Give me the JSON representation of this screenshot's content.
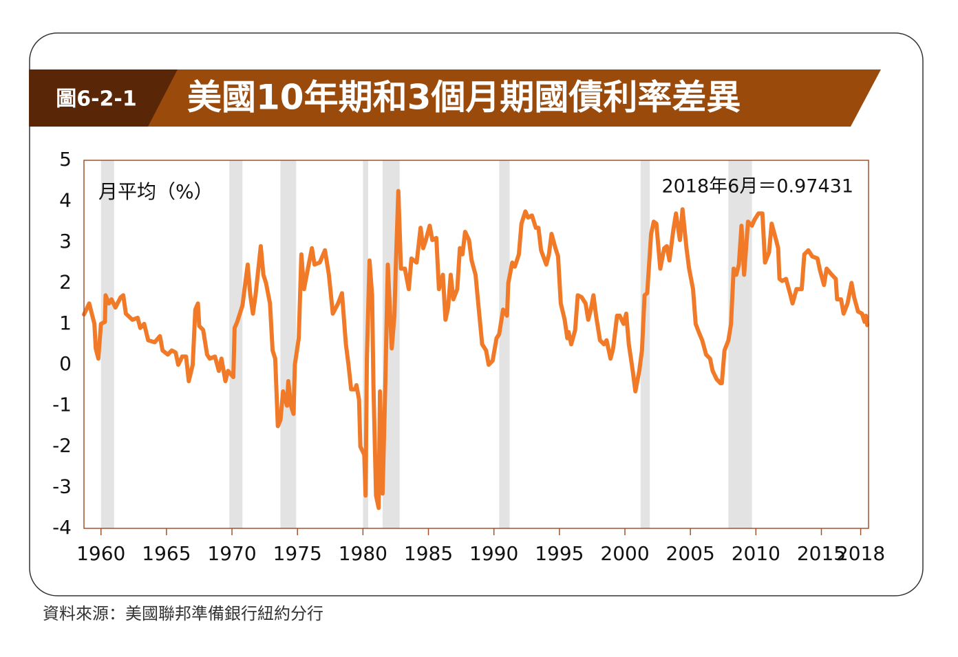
{
  "badge": "圖6-2-1",
  "chart_data": {
    "type": "line",
    "title": "美國10年期和3個月期國債利率差異",
    "y_label": "月平均（%）",
    "annotation": "2018年6月＝0.97431",
    "source": "資料來源：美國聯邦準備銀行紐約分行",
    "xlim": [
      1958.7,
      2018.6
    ],
    "xticks": [
      1960,
      1965,
      1970,
      1975,
      1980,
      1985,
      1990,
      1995,
      2000,
      2005,
      2010,
      2015,
      2018
    ],
    "ylim": [
      -4,
      5
    ],
    "yticks": [
      -4,
      -3,
      -2,
      -1,
      0,
      1,
      2,
      3,
      4,
      5
    ],
    "recessions": [
      [
        1960.0,
        1961.0
      ],
      [
        1969.8,
        1970.8
      ],
      [
        1973.7,
        1974.9
      ],
      [
        1980.0,
        1980.4
      ],
      [
        1981.5,
        1982.8
      ],
      [
        1990.4,
        1991.2
      ],
      [
        2001.2,
        2001.9
      ],
      [
        2007.9,
        2009.7
      ]
    ],
    "recession_color": "#e3e3e3",
    "x": [
      1958.7,
      1959.1,
      1959.5,
      1959.6,
      1959.8,
      1960.0,
      1960.3,
      1960.35,
      1960.6,
      1960.8,
      1961.1,
      1961.5,
      1961.7,
      1961.9,
      1962.4,
      1962.8,
      1963.0,
      1963.3,
      1963.6,
      1964.1,
      1964.5,
      1964.7,
      1965.1,
      1965.4,
      1965.7,
      1965.9,
      1966.2,
      1966.5,
      1966.7,
      1967.0,
      1967.2,
      1967.4,
      1967.5,
      1967.8,
      1968.1,
      1968.3,
      1968.7,
      1969.0,
      1969.2,
      1969.5,
      1969.7,
      1970.1,
      1970.2,
      1970.4,
      1970.8,
      1971.1,
      1971.2,
      1971.4,
      1971.6,
      1971.8,
      1972.2,
      1972.4,
      1972.6,
      1972.9,
      1973.1,
      1973.3,
      1973.5,
      1973.7,
      1973.9,
      1974.2,
      1974.3,
      1974.5,
      1974.7,
      1974.8,
      1975.1,
      1975.3,
      1975.5,
      1975.8,
      1976.1,
      1976.3,
      1976.7,
      1977.1,
      1977.4,
      1977.7,
      1978.1,
      1978.4,
      1978.7,
      1978.9,
      1979.1,
      1979.4,
      1979.5,
      1979.7,
      1979.8,
      1980.1,
      1980.2,
      1980.3,
      1980.5,
      1980.7,
      1980.8,
      1981.0,
      1981.2,
      1981.3,
      1981.5,
      1981.7,
      1981.9,
      1982.2,
      1982.4,
      1982.5,
      1982.7,
      1982.9,
      1983.2,
      1983.5,
      1983.7,
      1984.1,
      1984.4,
      1984.6,
      1984.8,
      1985.1,
      1985.3,
      1985.6,
      1985.8,
      1986.1,
      1986.3,
      1986.5,
      1986.7,
      1986.9,
      1987.2,
      1987.4,
      1987.6,
      1987.8,
      1988.1,
      1988.3,
      1988.6,
      1988.8,
      1989.1,
      1989.4,
      1989.6,
      1989.9,
      1990.2,
      1990.4,
      1990.7,
      1991.0,
      1991.1,
      1991.4,
      1991.6,
      1991.9,
      1992.1,
      1992.4,
      1992.6,
      1992.9,
      1993.2,
      1993.4,
      1993.6,
      1994.0,
      1994.2,
      1994.4,
      1994.7,
      1994.9,
      1995.1,
      1995.4,
      1995.6,
      1995.7,
      1995.9,
      1996.2,
      1996.4,
      1996.7,
      1997.0,
      1997.2,
      1997.4,
      1997.6,
      1997.8,
      1998.1,
      1998.4,
      1998.6,
      1998.9,
      1999.1,
      1999.4,
      1999.6,
      1999.9,
      2000.1,
      2000.3,
      2000.6,
      2000.8,
      2001.1,
      2001.3,
      2001.5,
      2001.7,
      2002.0,
      2002.2,
      2002.4,
      2002.7,
      2003.0,
      2003.2,
      2003.4,
      2003.7,
      2003.9,
      2004.2,
      2004.4,
      2004.7,
      2004.9,
      2005.2,
      2005.4,
      2005.7,
      2005.9,
      2006.2,
      2006.5,
      2006.7,
      2007.0,
      2007.3,
      2007.4,
      2007.6,
      2007.9,
      2008.1,
      2008.3,
      2008.5,
      2008.7,
      2008.9,
      2009.1,
      2009.4,
      2009.7,
      2009.9,
      2010.2,
      2010.5,
      2010.7,
      2011.0,
      2011.2,
      2011.5,
      2011.7,
      2011.8,
      2012.0,
      2012.3,
      2012.6,
      2012.8,
      2013.1,
      2013.5,
      2013.7,
      2014.0,
      2014.3,
      2014.7,
      2014.9,
      2015.2,
      2015.4,
      2015.8,
      2016.1,
      2016.2,
      2016.5,
      2016.7,
      2017.0,
      2017.3,
      2017.5,
      2017.8,
      2018.1,
      2018.3,
      2018.4,
      2018.5
    ],
    "series": [
      {
        "color": "#f07a28",
        "values": [
          1.23,
          1.5,
          1.0,
          0.4,
          0.15,
          1.0,
          1.05,
          1.7,
          1.5,
          1.6,
          1.4,
          1.65,
          1.7,
          1.25,
          1.1,
          1.15,
          0.9,
          1.0,
          0.6,
          0.55,
          0.7,
          0.35,
          0.25,
          0.35,
          0.3,
          0.0,
          0.2,
          0.2,
          -0.4,
          0.0,
          1.35,
          1.5,
          0.95,
          0.85,
          0.25,
          0.15,
          0.2,
          -0.15,
          0.15,
          -0.4,
          -0.15,
          -0.3,
          0.9,
          1.05,
          1.45,
          2.2,
          2.45,
          1.7,
          1.25,
          1.7,
          2.9,
          2.2,
          2.0,
          1.5,
          0.35,
          0.15,
          -1.5,
          -1.35,
          -0.65,
          -1.0,
          -0.4,
          -1.0,
          -1.2,
          0.0,
          0.65,
          2.7,
          1.85,
          2.35,
          2.85,
          2.45,
          2.5,
          2.8,
          2.2,
          1.25,
          1.5,
          1.75,
          0.5,
          0.0,
          -0.6,
          -0.6,
          -0.5,
          -0.85,
          -2.0,
          -2.2,
          -3.2,
          0.15,
          2.55,
          1.7,
          -0.5,
          -3.2,
          -3.5,
          -0.65,
          -3.15,
          -0.6,
          2.45,
          0.4,
          1.2,
          2.35,
          4.25,
          2.35,
          2.35,
          1.85,
          2.6,
          2.5,
          3.35,
          2.85,
          3.05,
          3.4,
          3.05,
          3.1,
          1.85,
          2.2,
          1.1,
          1.4,
          2.2,
          1.6,
          1.85,
          2.85,
          2.7,
          3.25,
          3.05,
          2.55,
          2.2,
          1.5,
          0.5,
          0.35,
          0.0,
          0.1,
          0.65,
          0.75,
          1.35,
          1.2,
          2.0,
          2.5,
          2.4,
          2.7,
          3.45,
          3.75,
          3.6,
          3.65,
          3.35,
          3.35,
          2.8,
          2.45,
          2.7,
          3.2,
          2.85,
          2.65,
          1.5,
          1.1,
          0.65,
          0.8,
          0.5,
          0.85,
          1.7,
          1.65,
          1.5,
          1.1,
          1.35,
          1.7,
          1.2,
          0.6,
          0.5,
          0.6,
          0.15,
          0.4,
          1.2,
          1.2,
          1.0,
          1.25,
          0.5,
          -0.15,
          -0.65,
          -0.15,
          0.35,
          1.7,
          1.75,
          3.2,
          3.5,
          3.45,
          2.35,
          2.85,
          2.9,
          2.55,
          3.3,
          3.7,
          3.05,
          3.8,
          2.85,
          2.35,
          1.85,
          1.0,
          0.75,
          0.6,
          0.25,
          0.15,
          -0.15,
          -0.35,
          -0.45,
          -0.45,
          0.35,
          0.6,
          1.0,
          2.35,
          2.2,
          2.45,
          3.4,
          2.2,
          3.5,
          3.4,
          3.55,
          3.7,
          3.7,
          2.5,
          2.75,
          3.45,
          3.1,
          2.85,
          2.1,
          2.05,
          2.1,
          1.75,
          1.5,
          1.85,
          1.85,
          2.7,
          2.8,
          2.65,
          2.6,
          2.3,
          1.95,
          2.35,
          2.2,
          2.1,
          1.6,
          1.6,
          1.25,
          1.5,
          2.0,
          1.65,
          1.3,
          1.25,
          1.05,
          1.2,
          0.97
        ]
      }
    ]
  }
}
